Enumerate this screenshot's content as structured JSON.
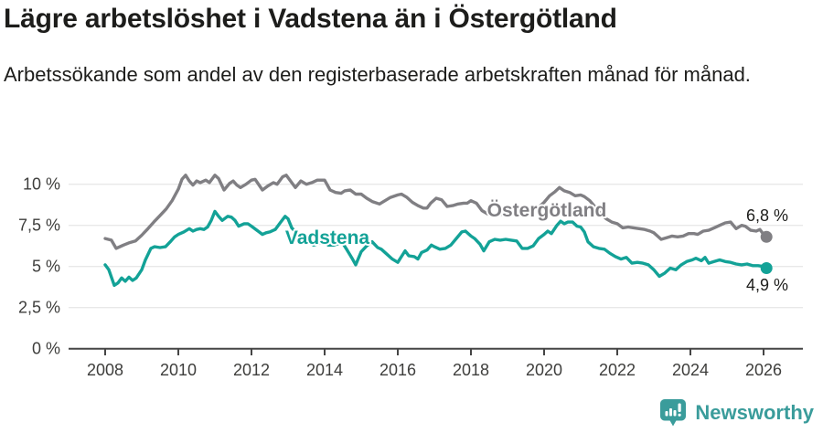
{
  "header": {
    "title": "Lägre arbetslöshet i Vadstena än i Östergötland",
    "subtitle": "Arbetssökande som andel av den registerbaserade arbetskraften månad för månad."
  },
  "footer": {
    "brand": "Newsworthy",
    "brand_color": "#3a9c9b",
    "logo_icon": "bar-chart-speech-bubble-icon"
  },
  "colors": {
    "ostergotland_line": "#807f83",
    "vadstena_line": "#13a297",
    "gridline": "#e0e0e0",
    "axis": "#454545",
    "text": "#1d1d1b"
  },
  "chart_data": {
    "type": "line",
    "title": "Lägre arbetslöshet i Vadstena än i Östergötland",
    "subtitle": "Arbetssökande som andel av den registerbaserade arbetskraften månad för månad.",
    "unit": "%",
    "grid": true,
    "legend": "inline-labels",
    "xlim": [
      2007,
      2027
    ],
    "ylim": [
      0,
      11
    ],
    "x_ticks": [
      2008,
      2010,
      2012,
      2014,
      2016,
      2018,
      2020,
      2022,
      2024,
      2026
    ],
    "y_ticks": [
      {
        "value": 0,
        "label": "0 %"
      },
      {
        "value": 2.5,
        "label": "2,5 %"
      },
      {
        "value": 5,
        "label": "5 %"
      },
      {
        "value": 7.5,
        "label": "7,5 %"
      },
      {
        "value": 10,
        "label": "10 %"
      }
    ],
    "series": [
      {
        "name": "Östergötland",
        "color": "#807f83",
        "end_label": "6,8 %",
        "end_value": 6.8,
        "points": [
          [
            2008.0,
            6.7
          ],
          [
            2008.17,
            6.6
          ],
          [
            2008.3,
            6.1
          ],
          [
            2008.5,
            6.3
          ],
          [
            2008.67,
            6.45
          ],
          [
            2008.83,
            6.55
          ],
          [
            2009.0,
            6.9
          ],
          [
            2009.17,
            7.3
          ],
          [
            2009.33,
            7.7
          ],
          [
            2009.5,
            8.1
          ],
          [
            2009.67,
            8.5
          ],
          [
            2009.83,
            9.0
          ],
          [
            2010.0,
            9.7
          ],
          [
            2010.1,
            10.3
          ],
          [
            2010.2,
            10.55
          ],
          [
            2010.3,
            10.2
          ],
          [
            2010.4,
            9.95
          ],
          [
            2010.5,
            10.2
          ],
          [
            2010.6,
            10.1
          ],
          [
            2010.75,
            10.25
          ],
          [
            2010.85,
            10.1
          ],
          [
            2011.0,
            10.55
          ],
          [
            2011.1,
            10.35
          ],
          [
            2011.25,
            9.65
          ],
          [
            2011.4,
            10.05
          ],
          [
            2011.5,
            10.2
          ],
          [
            2011.6,
            9.95
          ],
          [
            2011.7,
            9.8
          ],
          [
            2011.85,
            10.0
          ],
          [
            2012.0,
            10.25
          ],
          [
            2012.1,
            10.3
          ],
          [
            2012.3,
            9.65
          ],
          [
            2012.45,
            9.9
          ],
          [
            2012.6,
            10.1
          ],
          [
            2012.7,
            10.0
          ],
          [
            2012.85,
            10.45
          ],
          [
            2012.95,
            10.55
          ],
          [
            2013.1,
            10.1
          ],
          [
            2013.2,
            9.8
          ],
          [
            2013.35,
            10.2
          ],
          [
            2013.5,
            10.0
          ],
          [
            2013.65,
            10.1
          ],
          [
            2013.8,
            10.25
          ],
          [
            2014.0,
            10.25
          ],
          [
            2014.15,
            9.65
          ],
          [
            2014.3,
            9.5
          ],
          [
            2014.45,
            9.45
          ],
          [
            2014.55,
            9.6
          ],
          [
            2014.7,
            9.65
          ],
          [
            2014.85,
            9.4
          ],
          [
            2015.0,
            9.4
          ],
          [
            2015.15,
            9.15
          ],
          [
            2015.3,
            8.95
          ],
          [
            2015.5,
            8.8
          ],
          [
            2015.65,
            9.0
          ],
          [
            2015.8,
            9.2
          ],
          [
            2016.0,
            9.35
          ],
          [
            2016.1,
            9.4
          ],
          [
            2016.25,
            9.2
          ],
          [
            2016.4,
            8.9
          ],
          [
            2016.55,
            8.7
          ],
          [
            2016.7,
            8.55
          ],
          [
            2016.8,
            8.55
          ],
          [
            2016.9,
            8.85
          ],
          [
            2017.05,
            9.15
          ],
          [
            2017.2,
            9.05
          ],
          [
            2017.35,
            8.65
          ],
          [
            2017.5,
            8.7
          ],
          [
            2017.65,
            8.8
          ],
          [
            2017.8,
            8.85
          ],
          [
            2017.9,
            8.85
          ],
          [
            2018.0,
            9.0
          ],
          [
            2018.15,
            8.85
          ],
          [
            2018.3,
            8.4
          ],
          [
            2018.45,
            8.2
          ],
          [
            2018.6,
            8.1
          ],
          [
            2018.75,
            8.2
          ],
          [
            2018.9,
            8.15
          ],
          [
            2019.0,
            8.3
          ],
          [
            2019.15,
            8.4
          ],
          [
            2019.3,
            8.3
          ],
          [
            2019.45,
            8.35
          ],
          [
            2019.6,
            8.35
          ],
          [
            2019.75,
            8.5
          ],
          [
            2019.9,
            8.7
          ],
          [
            2020.0,
            8.9
          ],
          [
            2020.15,
            9.3
          ],
          [
            2020.3,
            9.55
          ],
          [
            2020.42,
            9.8
          ],
          [
            2020.55,
            9.6
          ],
          [
            2020.7,
            9.5
          ],
          [
            2020.85,
            9.3
          ],
          [
            2021.0,
            9.35
          ],
          [
            2021.1,
            9.25
          ],
          [
            2021.25,
            9.0
          ],
          [
            2021.4,
            8.6
          ],
          [
            2021.55,
            8.2
          ],
          [
            2021.7,
            7.9
          ],
          [
            2021.85,
            7.7
          ],
          [
            2022.0,
            7.6
          ],
          [
            2022.15,
            7.35
          ],
          [
            2022.3,
            7.4
          ],
          [
            2022.45,
            7.35
          ],
          [
            2022.6,
            7.3
          ],
          [
            2022.75,
            7.25
          ],
          [
            2022.9,
            7.15
          ],
          [
            2023.0,
            7.05
          ],
          [
            2023.1,
            6.85
          ],
          [
            2023.2,
            6.65
          ],
          [
            2023.35,
            6.75
          ],
          [
            2023.5,
            6.85
          ],
          [
            2023.65,
            6.8
          ],
          [
            2023.8,
            6.85
          ],
          [
            2023.95,
            7.0
          ],
          [
            2024.1,
            7.0
          ],
          [
            2024.2,
            6.95
          ],
          [
            2024.35,
            7.15
          ],
          [
            2024.5,
            7.2
          ],
          [
            2024.65,
            7.35
          ],
          [
            2024.8,
            7.5
          ],
          [
            2024.95,
            7.65
          ],
          [
            2025.1,
            7.7
          ],
          [
            2025.25,
            7.3
          ],
          [
            2025.4,
            7.5
          ],
          [
            2025.5,
            7.45
          ],
          [
            2025.65,
            7.2
          ],
          [
            2025.8,
            7.15
          ],
          [
            2025.9,
            7.25
          ],
          [
            2026.0,
            6.95
          ],
          [
            2026.08,
            6.8
          ]
        ]
      },
      {
        "name": "Vadstena",
        "color": "#13a297",
        "end_label": "4,9 %",
        "end_value": 4.9,
        "points": [
          [
            2008.0,
            5.1
          ],
          [
            2008.1,
            4.8
          ],
          [
            2008.25,
            3.85
          ],
          [
            2008.35,
            4.0
          ],
          [
            2008.45,
            4.3
          ],
          [
            2008.55,
            4.1
          ],
          [
            2008.65,
            4.35
          ],
          [
            2008.75,
            4.15
          ],
          [
            2008.85,
            4.3
          ],
          [
            2009.0,
            4.8
          ],
          [
            2009.1,
            5.4
          ],
          [
            2009.25,
            6.1
          ],
          [
            2009.35,
            6.2
          ],
          [
            2009.5,
            6.15
          ],
          [
            2009.65,
            6.2
          ],
          [
            2009.8,
            6.55
          ],
          [
            2009.9,
            6.8
          ],
          [
            2010.0,
            6.95
          ],
          [
            2010.15,
            7.1
          ],
          [
            2010.3,
            7.3
          ],
          [
            2010.4,
            7.15
          ],
          [
            2010.5,
            7.25
          ],
          [
            2010.6,
            7.3
          ],
          [
            2010.7,
            7.25
          ],
          [
            2010.8,
            7.4
          ],
          [
            2010.9,
            7.8
          ],
          [
            2011.0,
            8.35
          ],
          [
            2011.1,
            8.05
          ],
          [
            2011.2,
            7.8
          ],
          [
            2011.35,
            8.05
          ],
          [
            2011.45,
            8.0
          ],
          [
            2011.55,
            7.8
          ],
          [
            2011.65,
            7.45
          ],
          [
            2011.8,
            7.6
          ],
          [
            2011.9,
            7.6
          ],
          [
            2012.0,
            7.45
          ],
          [
            2012.15,
            7.2
          ],
          [
            2012.3,
            6.95
          ],
          [
            2012.4,
            7.05
          ],
          [
            2012.5,
            7.1
          ],
          [
            2012.65,
            7.25
          ],
          [
            2012.8,
            7.7
          ],
          [
            2012.92,
            8.05
          ],
          [
            2013.0,
            7.9
          ],
          [
            2013.1,
            7.35
          ],
          [
            2013.25,
            7.0
          ],
          [
            2013.4,
            6.7
          ],
          [
            2013.55,
            6.5
          ],
          [
            2013.7,
            6.3
          ],
          [
            2013.85,
            6.4
          ],
          [
            2014.0,
            6.5
          ],
          [
            2014.1,
            6.3
          ],
          [
            2014.25,
            6.3
          ],
          [
            2014.4,
            6.4
          ],
          [
            2014.5,
            6.4
          ],
          [
            2014.6,
            6.05
          ],
          [
            2014.75,
            5.5
          ],
          [
            2014.85,
            5.1
          ],
          [
            2015.0,
            5.9
          ],
          [
            2015.15,
            6.25
          ],
          [
            2015.3,
            6.5
          ],
          [
            2015.45,
            6.15
          ],
          [
            2015.55,
            6.05
          ],
          [
            2015.7,
            5.75
          ],
          [
            2015.85,
            5.45
          ],
          [
            2016.0,
            5.25
          ],
          [
            2016.1,
            5.6
          ],
          [
            2016.2,
            5.95
          ],
          [
            2016.3,
            5.65
          ],
          [
            2016.45,
            5.6
          ],
          [
            2016.55,
            5.45
          ],
          [
            2016.65,
            5.85
          ],
          [
            2016.8,
            6.0
          ],
          [
            2016.92,
            6.3
          ],
          [
            2017.0,
            6.2
          ],
          [
            2017.15,
            6.05
          ],
          [
            2017.3,
            6.1
          ],
          [
            2017.45,
            6.3
          ],
          [
            2017.6,
            6.7
          ],
          [
            2017.75,
            7.1
          ],
          [
            2017.85,
            7.15
          ],
          [
            2018.0,
            6.85
          ],
          [
            2018.1,
            6.7
          ],
          [
            2018.25,
            6.35
          ],
          [
            2018.35,
            5.95
          ],
          [
            2018.5,
            6.5
          ],
          [
            2018.65,
            6.65
          ],
          [
            2018.8,
            6.6
          ],
          [
            2018.95,
            6.65
          ],
          [
            2019.1,
            6.6
          ],
          [
            2019.25,
            6.55
          ],
          [
            2019.4,
            6.1
          ],
          [
            2019.55,
            6.1
          ],
          [
            2019.7,
            6.25
          ],
          [
            2019.85,
            6.7
          ],
          [
            2020.0,
            6.95
          ],
          [
            2020.1,
            7.15
          ],
          [
            2020.2,
            7.0
          ],
          [
            2020.35,
            7.5
          ],
          [
            2020.45,
            7.75
          ],
          [
            2020.55,
            7.6
          ],
          [
            2020.65,
            7.7
          ],
          [
            2020.78,
            7.7
          ],
          [
            2020.9,
            7.45
          ],
          [
            2021.0,
            7.4
          ],
          [
            2021.1,
            7.1
          ],
          [
            2021.2,
            6.5
          ],
          [
            2021.35,
            6.2
          ],
          [
            2021.5,
            6.1
          ],
          [
            2021.65,
            6.05
          ],
          [
            2021.8,
            5.8
          ],
          [
            2021.95,
            5.6
          ],
          [
            2022.1,
            5.45
          ],
          [
            2022.25,
            5.55
          ],
          [
            2022.4,
            5.2
          ],
          [
            2022.55,
            5.25
          ],
          [
            2022.7,
            5.2
          ],
          [
            2022.85,
            5.1
          ],
          [
            2023.0,
            4.8
          ],
          [
            2023.15,
            4.4
          ],
          [
            2023.3,
            4.6
          ],
          [
            2023.45,
            4.9
          ],
          [
            2023.6,
            4.8
          ],
          [
            2023.75,
            5.1
          ],
          [
            2023.9,
            5.3
          ],
          [
            2024.05,
            5.4
          ],
          [
            2024.15,
            5.5
          ],
          [
            2024.3,
            5.35
          ],
          [
            2024.4,
            5.55
          ],
          [
            2024.5,
            5.2
          ],
          [
            2024.65,
            5.3
          ],
          [
            2024.8,
            5.4
          ],
          [
            2024.95,
            5.3
          ],
          [
            2025.1,
            5.25
          ],
          [
            2025.25,
            5.15
          ],
          [
            2025.4,
            5.1
          ],
          [
            2025.55,
            5.15
          ],
          [
            2025.7,
            5.05
          ],
          [
            2025.85,
            5.05
          ],
          [
            2026.0,
            5.0
          ],
          [
            2026.08,
            4.9
          ]
        ]
      }
    ]
  }
}
